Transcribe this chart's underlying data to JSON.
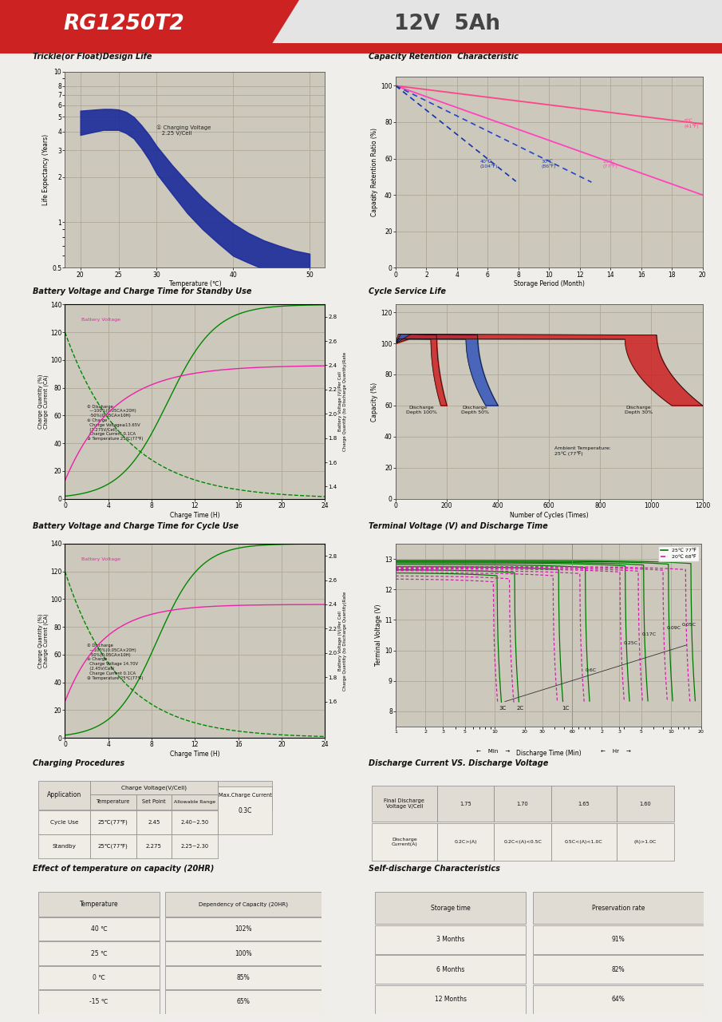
{
  "title_text": "RG1250T2",
  "title_subtitle": "12V  5Ah",
  "header_red": "#cc2222",
  "bg_color": "#f0eeea",
  "plot_bg": "#ccc8bc",
  "grid_color": "#aaa090",
  "section1_title": "Trickle(or Float)Design Life",
  "section2_title": "Capacity Retention  Characteristic",
  "section3_title": "Battery Voltage and Charge Time for Standby Use",
  "section4_title": "Cycle Service Life",
  "section5_title": "Battery Voltage and Charge Time for Cycle Use",
  "section6_title": "Terminal Voltage (V) and Discharge Time",
  "section7_title": "Charging Procedures",
  "section8_title": "Discharge Current VS. Discharge Voltage",
  "section9_title": "Effect of temperature on capacity (20HR)",
  "section10_title": "Self-discharge Characteristics",
  "table_bg": "#f0ede6",
  "table_header_bg": "#e0dcd4"
}
